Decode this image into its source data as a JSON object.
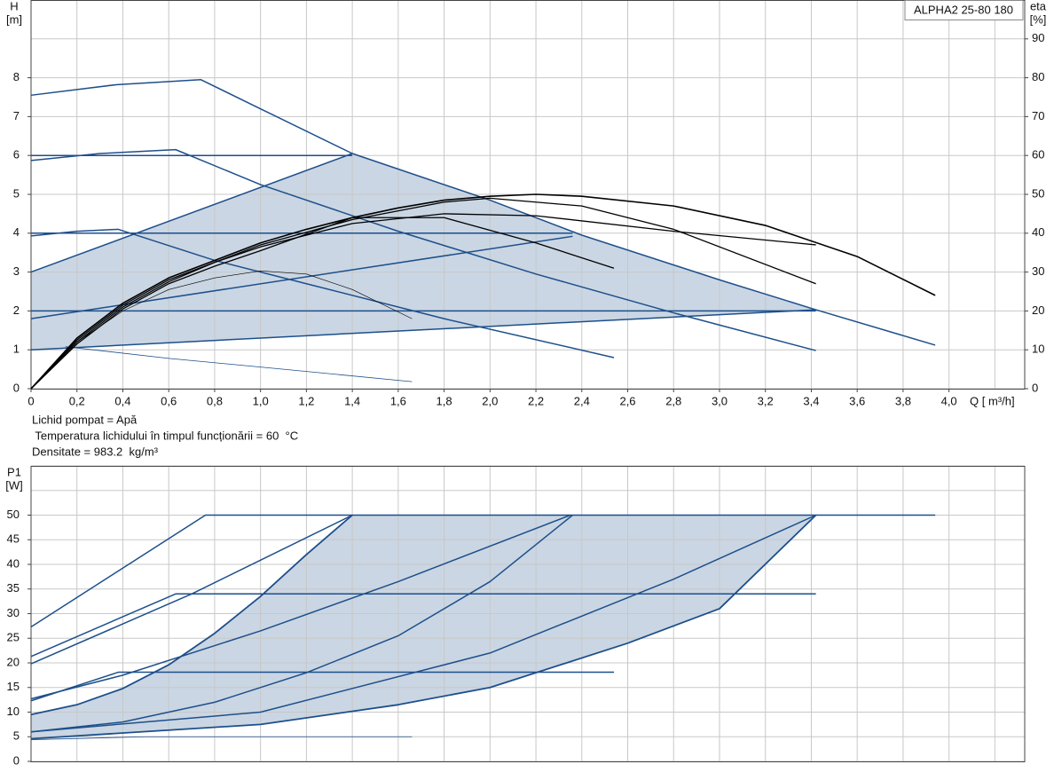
{
  "chart_data": [
    {
      "type": "line",
      "title": "ALPHA2 25-80 180",
      "ylabel": "H",
      "yunit": "[m]",
      "y2label": "eta",
      "y2unit": "[%]",
      "xlabel": "Q [ m³/h]",
      "xlim": [
        0,
        4.33
      ],
      "ylim": [
        0,
        10
      ],
      "y2lim": [
        0,
        100
      ],
      "grid_step_x": 0.2,
      "grid_step_y": 1,
      "xticks": [
        0,
        {
          "value": 0.2,
          "label": "0,2"
        },
        {
          "value": 0.4,
          "label": "0,4"
        },
        {
          "value": 0.6,
          "label": "0,6"
        },
        {
          "value": 0.8,
          "label": "0,8"
        },
        {
          "value": 1.0,
          "label": "1,0"
        },
        {
          "value": 1.2,
          "label": "1,2"
        },
        {
          "value": 1.4,
          "label": "1,4"
        },
        {
          "value": 1.6,
          "label": "1,6"
        },
        {
          "value": 1.8,
          "label": "1,8"
        },
        {
          "value": 2.0,
          "label": "2,0"
        },
        {
          "value": 2.2,
          "label": "2,2"
        },
        {
          "value": 2.4,
          "label": "2,4"
        },
        {
          "value": 2.6,
          "label": "2,6"
        },
        {
          "value": 2.8,
          "label": "2,8"
        },
        {
          "value": 3.0,
          "label": "3,0"
        },
        {
          "value": 3.2,
          "label": "3,2"
        },
        {
          "value": 3.4,
          "label": "3,4"
        },
        {
          "value": 3.6,
          "label": "3,6"
        },
        {
          "value": 3.8,
          "label": "3,8"
        },
        {
          "value": 4.0,
          "label": "4,0"
        }
      ],
      "yticks": [
        0,
        1,
        2,
        3,
        4,
        5,
        6,
        7,
        8
      ],
      "y2ticks": [
        0,
        10,
        20,
        30,
        40,
        50,
        60,
        70,
        80,
        90
      ],
      "notes": [
        "Lichid pompat = Apă",
        " Temperatura lichidului în timpul funcționării = 60  °C",
        "Densitate = 983.2  kg/m³"
      ],
      "areas": [
        {
          "color": "#cad6e3",
          "x": [
            0,
            1.4,
            2.0,
            2.4,
            3.0,
            3.42,
            0
          ],
          "values": [
            3.0,
            6.05,
            4.85,
            3.95,
            2.8,
            2.03,
            1.0
          ]
        }
      ],
      "series": [
        {
          "color": "#1d4f8b",
          "width": 1.5,
          "x": [
            0,
            0.37,
            0.74,
            1.0,
            1.4,
            2.0,
            2.4,
            3.0,
            3.42,
            3.94
          ],
          "values": [
            7.55,
            7.82,
            7.95,
            7.2,
            6.05,
            4.85,
            3.95,
            2.8,
            2.03,
            1.12
          ]
        },
        {
          "color": "#1d4f8b",
          "width": 1.5,
          "x": [
            0,
            0.3,
            0.63,
            1.0,
            1.6,
            2.2,
            2.8,
            3.42
          ],
          "values": [
            5.87,
            6.05,
            6.15,
            5.25,
            4.05,
            2.95,
            1.95,
            0.98
          ]
        },
        {
          "color": "#1d4f8b",
          "width": 1.5,
          "x": [
            0,
            0.2,
            0.38,
            0.8,
            1.2,
            1.8,
            2.54
          ],
          "values": [
            3.93,
            4.05,
            4.1,
            3.3,
            2.7,
            1.8,
            0.8
          ]
        },
        {
          "color": "#1d4f8b",
          "width": 0.8,
          "x": [
            0.15,
            0.6,
            1.1,
            1.66
          ],
          "values": [
            1.08,
            0.78,
            0.5,
            0.18
          ]
        },
        {
          "color": "#1d4f8b",
          "width": 1.5,
          "x": [
            0,
            1.4
          ],
          "values": [
            6.0,
            6.0
          ]
        },
        {
          "color": "#1d4f8b",
          "width": 1.5,
          "x": [
            0,
            2.36
          ],
          "values": [
            4.0,
            4.0
          ]
        },
        {
          "color": "#1d4f8b",
          "width": 1.5,
          "x": [
            0,
            3.42
          ],
          "values": [
            2.0,
            2.0
          ]
        },
        {
          "color": "#1d4f8b",
          "width": 1.5,
          "x": [
            0,
            1.4
          ],
          "values": [
            3.0,
            6.05
          ]
        },
        {
          "color": "#1d4f8b",
          "width": 1.5,
          "x": [
            0,
            2.36
          ],
          "values": [
            1.8,
            3.92
          ]
        },
        {
          "color": "#1d4f8b",
          "width": 1.5,
          "x": [
            0,
            3.42
          ],
          "values": [
            1.0,
            2.03
          ]
        },
        {
          "color": "#000000",
          "width": 1.6,
          "axis": "y2",
          "x": [
            0,
            0.2,
            0.4,
            0.6,
            0.8,
            1.0,
            1.2,
            1.4,
            1.6,
            1.8,
            2.0,
            2.2,
            2.4,
            2.8,
            3.2,
            3.6,
            3.94
          ],
          "values": [
            0,
            13,
            22,
            28.5,
            33,
            37.5,
            41,
            44,
            46.5,
            48.5,
            49.5,
            50,
            49.5,
            47,
            42,
            34,
            24
          ]
        },
        {
          "color": "#000000",
          "width": 1.3,
          "axis": "y2",
          "x": [
            0,
            0.2,
            0.4,
            0.6,
            0.8,
            1.0,
            1.4,
            1.8,
            2.2,
            2.8,
            3.42
          ],
          "values": [
            0,
            12.5,
            21.5,
            28,
            32.5,
            36.5,
            42.5,
            45,
            44.5,
            40.5,
            37
          ]
        },
        {
          "color": "#000000",
          "width": 1.3,
          "axis": "y2",
          "x": [
            0,
            0.2,
            0.4,
            0.6,
            0.8,
            1.0,
            1.4,
            1.8,
            2.0,
            2.4,
            2.8,
            3.42
          ],
          "values": [
            0,
            12,
            21,
            27.5,
            32.5,
            37,
            43.5,
            48,
            49,
            47,
            41,
            27
          ]
        },
        {
          "color": "#000000",
          "width": 1.3,
          "axis": "y2",
          "x": [
            0,
            0.2,
            0.4,
            0.6,
            0.8,
            1.0,
            1.4,
            1.8,
            2.2,
            2.54
          ],
          "values": [
            0,
            11.5,
            20.5,
            27,
            31.5,
            35.5,
            44,
            44,
            37.5,
            31
          ]
        },
        {
          "color": "#000000",
          "width": 0.6,
          "axis": "y2",
          "x": [
            0,
            0.2,
            0.4,
            0.6,
            0.8,
            1.0,
            1.2,
            1.4,
            1.66
          ],
          "values": [
            0,
            12,
            20,
            25.5,
            28.5,
            30.3,
            29.5,
            25.5,
            18
          ]
        }
      ]
    },
    {
      "type": "line",
      "ylabel": "P1",
      "yunit": "[W]",
      "xlim": [
        0,
        4.33
      ],
      "ylim": [
        0,
        60
      ],
      "grid_step_x": 0.2,
      "grid_step_y": 5,
      "yticks": [
        0,
        5,
        10,
        15,
        20,
        25,
        30,
        35,
        40,
        45,
        50
      ],
      "areas": [
        {
          "color": "#cad6e3",
          "x": [
            0,
            0.2,
            0.4,
            0.6,
            0.8,
            1.0,
            1.2,
            1.4,
            3.42,
            3.0,
            2.6,
            2.0,
            1.6,
            1.0,
            0
          ],
          "values": [
            9.5,
            11.5,
            14.8,
            19.6,
            26,
            33.5,
            42,
            50,
            50,
            31,
            24,
            15,
            11.5,
            7.5,
            4.6
          ]
        }
      ],
      "series": [
        {
          "color": "#1d4f8b",
          "width": 1.5,
          "x": [
            0,
            0.76,
            3.94
          ],
          "values": [
            27.3,
            50,
            50
          ]
        },
        {
          "color": "#1d4f8b",
          "width": 1.5,
          "x": [
            0,
            0.63,
            3.42
          ],
          "values": [
            21.3,
            34,
            34
          ]
        },
        {
          "color": "#1d4f8b",
          "width": 1.5,
          "x": [
            0,
            0.38,
            2.54
          ],
          "values": [
            12.3,
            18.1,
            18.1
          ]
        },
        {
          "color": "#1d4f8b",
          "width": 0.8,
          "x": [
            0,
            0.5,
            1.66
          ],
          "values": [
            4.4,
            5,
            5
          ]
        },
        {
          "color": "#1d4f8b",
          "width": 1.8,
          "x": [
            0,
            0.2,
            0.4,
            0.6,
            0.8,
            1.0,
            1.2,
            1.4
          ],
          "values": [
            9.5,
            11.5,
            14.8,
            19.6,
            26,
            33.5,
            42,
            50
          ]
        },
        {
          "color": "#1d4f8b",
          "width": 1.5,
          "x": [
            0,
            0.7,
            1.4
          ],
          "values": [
            19.8,
            34,
            50
          ]
        },
        {
          "color": "#1d4f8b",
          "width": 1.5,
          "x": [
            0,
            0.4,
            1.0,
            1.6,
            2.35
          ],
          "values": [
            12.7,
            17.5,
            26.5,
            36.5,
            50
          ]
        },
        {
          "color": "#1d4f8b",
          "width": 1.5,
          "x": [
            0,
            0.4,
            0.8,
            1.2,
            1.6,
            2.0,
            2.36
          ],
          "values": [
            6,
            8,
            12,
            18,
            25.5,
            36.5,
            50
          ]
        },
        {
          "color": "#1d4f8b",
          "width": 1.5,
          "x": [
            0,
            1.0,
            2.0,
            2.8,
            3.42
          ],
          "values": [
            6,
            10,
            22,
            37,
            50
          ]
        },
        {
          "color": "#1d4f8b",
          "width": 1.8,
          "x": [
            0,
            1.0,
            1.6,
            2.0,
            2.6,
            3.0,
            3.42
          ],
          "values": [
            4.6,
            7.5,
            11.5,
            15,
            24,
            31,
            50
          ]
        }
      ]
    }
  ]
}
